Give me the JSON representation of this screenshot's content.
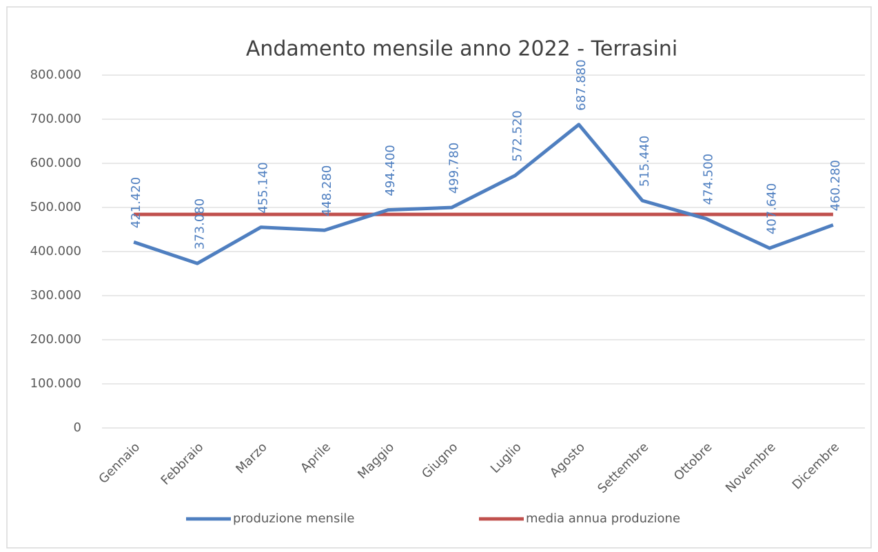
{
  "chart_data": {
    "type": "line",
    "title": "Andamento mensile anno 2022 - Terrasini",
    "categories": [
      "Gennaio",
      "Febbraio",
      "Marzo",
      "Aprile",
      "Maggio",
      "Giugno",
      "Luglio",
      "Agosto",
      "Settembre",
      "Ottobre",
      "Novembre",
      "Dicembre"
    ],
    "series": [
      {
        "name": "produzione mensile",
        "color": "#4f7fc0",
        "values": [
          421420,
          373080,
          455140,
          448280,
          494400,
          499780,
          572520,
          687880,
          515440,
          474500,
          407640,
          460280
        ],
        "value_labels": [
          "421.420",
          "373.080",
          "455.140",
          "448.280",
          "494.400",
          "499.780",
          "572.520",
          "687.880",
          "515.440",
          "474.500",
          "407.640",
          "460.280"
        ]
      },
      {
        "name": "media annua produzione",
        "color": "#c0504d",
        "values": [
          484197,
          484197,
          484197,
          484197,
          484197,
          484197,
          484197,
          484197,
          484197,
          484197,
          484197,
          484197
        ]
      }
    ],
    "ylim": [
      0,
      800000
    ],
    "yticks": [
      0,
      {
        "value": 100000,
        "label": "100.000"
      },
      {
        "value": 200000,
        "label": "200.000"
      },
      {
        "value": 300000,
        "label": "300.000"
      },
      {
        "value": 400000,
        "label": "400.000"
      },
      {
        "value": 500000,
        "label": "500.000"
      },
      {
        "value": 600000,
        "label": "600.000"
      },
      {
        "value": 700000,
        "label": "700.000"
      },
      {
        "value": 800000,
        "label": "800.000"
      }
    ],
    "grid": true,
    "legend": "bottom"
  }
}
